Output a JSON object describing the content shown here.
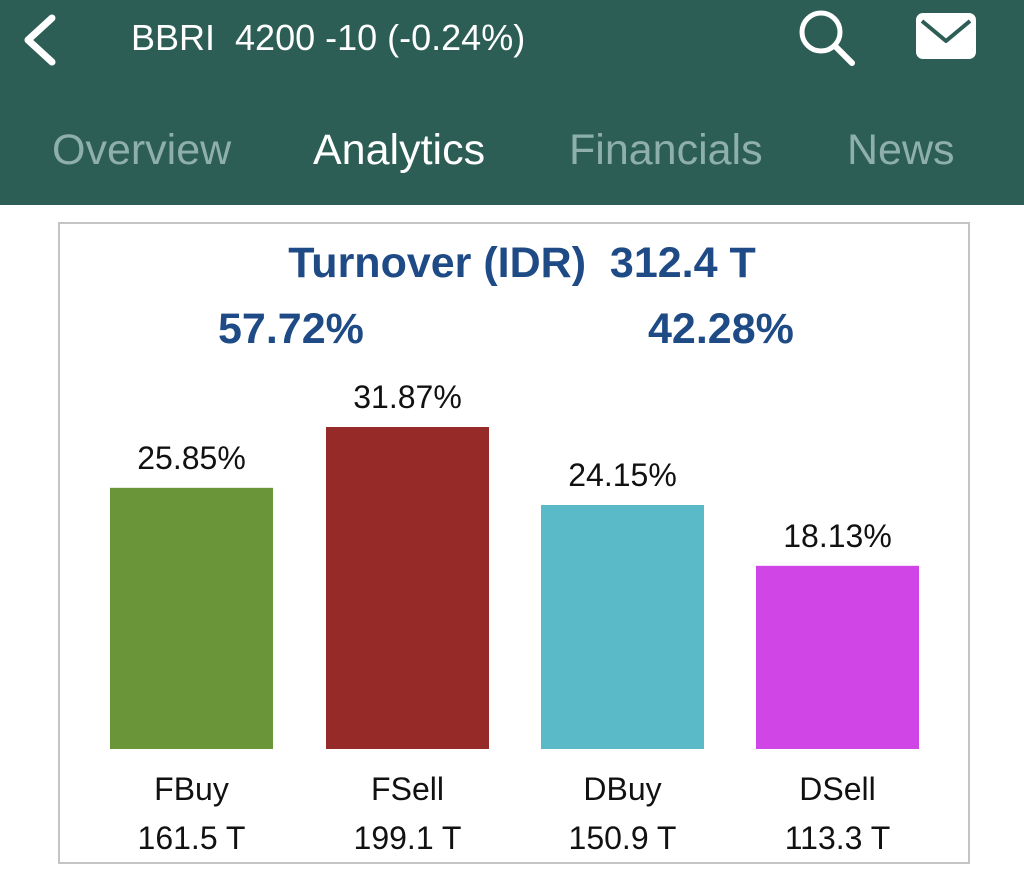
{
  "header": {
    "title": "BBRI  4200 -10 (-0.24%)",
    "back_icon": "chevron-left-icon",
    "search_icon": "search-icon",
    "mail_icon": "mail-icon",
    "background_color": "#2c5e55"
  },
  "tabs": [
    {
      "label": "Overview",
      "active": false
    },
    {
      "label": "Analytics",
      "active": true
    },
    {
      "label": "Financials",
      "active": false
    },
    {
      "label": "News",
      "active": false
    }
  ],
  "turnover": {
    "title": "Turnover (IDR)  312.4 T",
    "foreign_share": "57.72%",
    "domestic_share": "42.28%"
  },
  "chart_data": {
    "type": "bar",
    "categories": [
      "FBuy",
      "FSell",
      "DBuy",
      "DSell"
    ],
    "values": [
      25.85,
      31.87,
      24.15,
      18.13
    ],
    "percent_labels": [
      "25.85%",
      "31.87%",
      "24.15%",
      "18.13%"
    ],
    "amount_labels": [
      "161.5 T",
      "199.1 T",
      "150.9 T",
      "113.3 T"
    ],
    "colors": [
      "#6a9539",
      "#962a28",
      "#5bbac8",
      "#d045e6"
    ],
    "ylim": [
      0,
      31.87
    ],
    "grid": false
  }
}
